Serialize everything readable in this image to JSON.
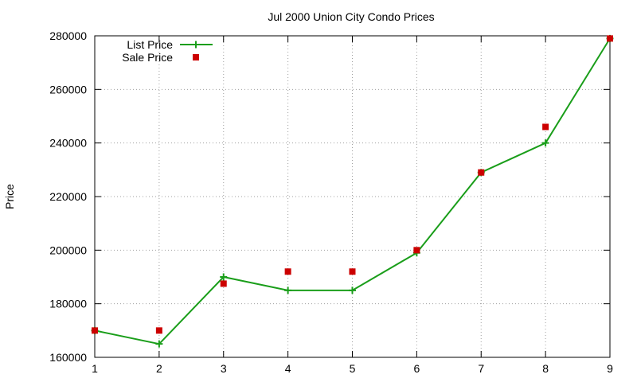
{
  "chart_data": {
    "type": "line",
    "title": "Jul 2000 Union City Condo Prices",
    "xlabel": "",
    "ylabel": "Price",
    "x": [
      1,
      2,
      3,
      4,
      5,
      6,
      7,
      8,
      9
    ],
    "xlim": [
      1,
      9
    ],
    "ylim": [
      160000,
      280000
    ],
    "xticks": [
      "1",
      "2",
      "3",
      "4",
      "5",
      "6",
      "7",
      "8",
      "9"
    ],
    "yticks": [
      "160000",
      "180000",
      "200000",
      "220000",
      "240000",
      "260000",
      "280000"
    ],
    "grid": true,
    "legend_position": "top-left",
    "series": [
      {
        "name": "List Price",
        "style": "line-points",
        "color": "#1a9e1a",
        "marker": "plus",
        "values": [
          170000,
          165000,
          190000,
          185000,
          185000,
          199000,
          229000,
          240000,
          279000
        ]
      },
      {
        "name": "Sale Price",
        "style": "points",
        "color": "#cc0000",
        "marker": "square",
        "values": [
          170000,
          170000,
          187500,
          192000,
          192000,
          200000,
          229000,
          246000,
          279000
        ]
      }
    ]
  }
}
